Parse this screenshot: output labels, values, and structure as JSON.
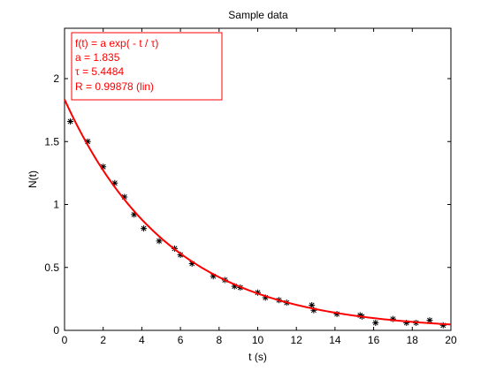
{
  "chart_data": {
    "type": "scatter",
    "title": "Sample data",
    "xlabel": "t (s)",
    "ylabel": "N(t)",
    "xlim": [
      0,
      20
    ],
    "ylim": [
      0,
      2.4
    ],
    "xticks": [
      0,
      2,
      4,
      6,
      8,
      10,
      12,
      14,
      16,
      18,
      20
    ],
    "xtick_labels": [
      "0",
      "2",
      "4",
      "6",
      "8",
      "10",
      "12",
      "14",
      "16",
      "18",
      "20"
    ],
    "yticks": [
      0,
      0.5,
      1,
      1.5,
      2
    ],
    "ytick_labels": [
      "0",
      "0.5",
      "1",
      "1.5",
      "2"
    ],
    "grid": false,
    "series": [
      {
        "marker": "*",
        "color": "#000000",
        "x": [
          0.3,
          1.2,
          2.0,
          2.6,
          3.1,
          3.6,
          4.1,
          4.9,
          5.7,
          6.0,
          6.6,
          7.7,
          8.3,
          8.8,
          9.1,
          10.0,
          10.4,
          11.1,
          11.5,
          12.8,
          12.9,
          14.1,
          15.3,
          15.4,
          16.1,
          17.0,
          17.7,
          18.2,
          18.9,
          19.6
        ],
        "y": [
          1.66,
          1.5,
          1.3,
          1.17,
          1.06,
          0.92,
          0.81,
          0.71,
          0.65,
          0.6,
          0.53,
          0.43,
          0.4,
          0.35,
          0.34,
          0.3,
          0.26,
          0.24,
          0.22,
          0.2,
          0.16,
          0.13,
          0.12,
          0.11,
          0.06,
          0.09,
          0.06,
          0.06,
          0.08,
          0.04
        ]
      },
      {
        "type": "line",
        "color": "#ff0000",
        "formula": "a*exp(-t/tau)",
        "a": 1.835,
        "tau": 5.4484
      }
    ],
    "annotation": {
      "lines": [
        "f(t) = a exp( - t / τ)",
        "a = 1.835",
        "τ = 5.4484",
        "R = 0.99878  (lin)"
      ],
      "color": "#ff0000",
      "placement": "top-left"
    }
  }
}
